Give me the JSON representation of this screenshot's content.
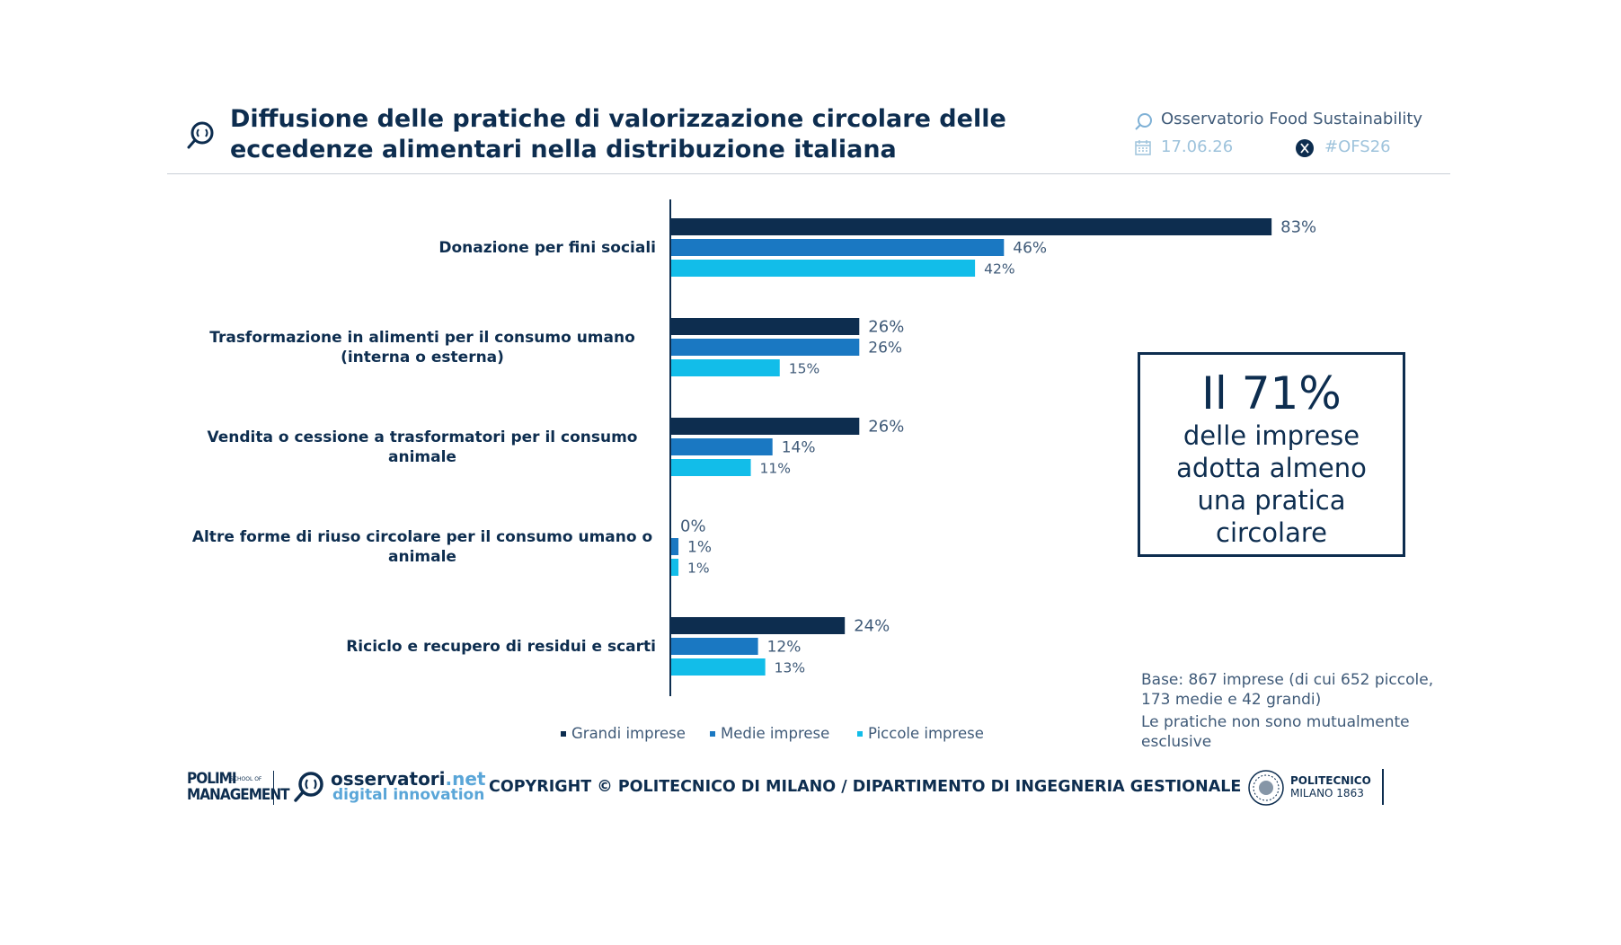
{
  "header": {
    "title_line1": "Diffusione delle pratiche di valorizzazione circolare delle",
    "title_line2": "eccedenze alimentari nella distribuzione italiana",
    "observatory": "Osservatorio Food Sustainability",
    "date": "17.06.26",
    "hashtag": "#OFS26"
  },
  "chart_data": {
    "type": "bar",
    "orientation": "horizontal",
    "categories": [
      "Donazione per fini sociali",
      "Trasformazione in alimenti per il consumo umano (interna o esterna)",
      "Vendita o cessione a trasformatori per il consumo animale",
      "Altre forme di riuso circolare per il consumo umano o animale",
      "Riciclo e recupero di residui e scarti"
    ],
    "series": [
      {
        "name": "Grandi imprese",
        "color": "#0d2d4f",
        "values": [
          83,
          26,
          26,
          0,
          24
        ],
        "labels": [
          "83%",
          "26%",
          "26%",
          "0%",
          "24%"
        ]
      },
      {
        "name": "Medie imprese",
        "color": "#1a78c2",
        "values": [
          46,
          26,
          14,
          1,
          12
        ],
        "labels": [
          "46%",
          "26%",
          "14%",
          "1%",
          "12%"
        ]
      },
      {
        "name": "Piccole imprese",
        "color": "#12bde9",
        "values": [
          42,
          15,
          11,
          1,
          13
        ],
        "labels": [
          "42%",
          "15%",
          "11%",
          "1%",
          "13%"
        ]
      }
    ],
    "unit": "%",
    "xlim": [
      0,
      100
    ],
    "grid": false,
    "legend_position": "bottom"
  },
  "callout": {
    "big": "Il 71%",
    "line1": "delle imprese",
    "line2": "adotta almeno",
    "line3": "una pratica",
    "line4": "circolare"
  },
  "notes": {
    "base": "Base: 867 imprese (di cui 652 piccole, 173 medie e 42 grandi)",
    "exclusive": "Le pratiche non sono mutualmente esclusive"
  },
  "footer": {
    "polimi_line1": "POLIMI",
    "polimi_line2": "MANAGEMENT",
    "school_line1": "SCHOOL OF",
    "obs_name": "osservatori",
    "obs_net": ".net",
    "obs_sub": "digital innovation",
    "copyright": "COPYRIGHT © POLITECNICO DI MILANO / DIPARTIMENTO DI INGEGNERIA GESTIONALE",
    "pm_line1": "POLITECNICO",
    "pm_line2": "MILANO 1863"
  },
  "colors": {
    "navy": "#0d2d4f",
    "blue": "#1a78c2",
    "cyan": "#12bde9"
  }
}
